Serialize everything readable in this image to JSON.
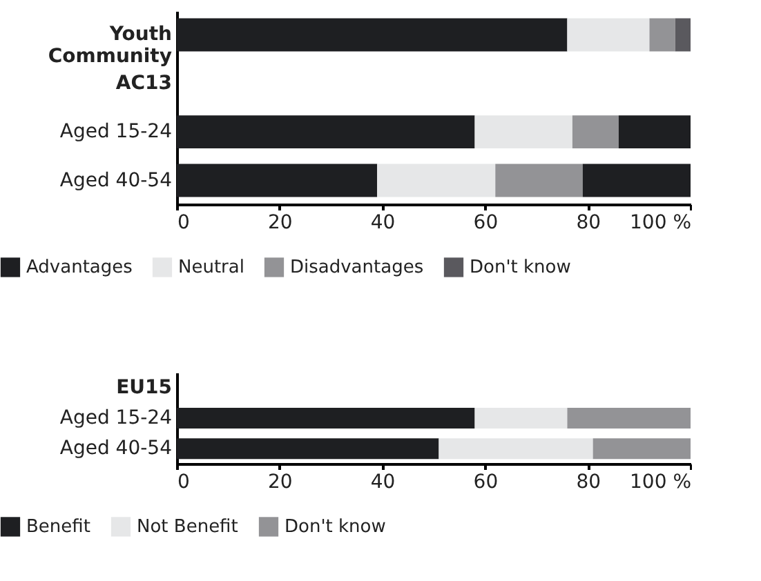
{
  "chart_data": [
    {
      "type": "bar",
      "orientation": "horizontal",
      "stacked": true,
      "categories": [
        "Youth Community",
        "AC13",
        "Aged 15-24",
        "Aged 40-54"
      ],
      "series": [
        {
          "name": "Advantages",
          "color": "#1e1f22",
          "values": [
            76,
            null,
            58,
            39
          ]
        },
        {
          "name": "Neutral",
          "color": "#e6e7e8",
          "values": [
            16,
            null,
            19,
            23
          ]
        },
        {
          "name": "Disadvantages",
          "color": "#939396",
          "values": [
            5,
            null,
            9,
            17
          ]
        },
        {
          "name": "Don't know",
          "color": "#5a595e",
          "colors": [
            "#5a595e",
            null,
            "#1e1f22",
            "#1e1f22"
          ],
          "values": [
            3,
            null,
            14,
            21
          ]
        }
      ],
      "xlim": [
        0,
        100
      ],
      "xticks": [
        0,
        20,
        40,
        60,
        80,
        {
          "value": 100,
          "label": "100 %"
        }
      ],
      "grid": false,
      "legend": "bottom"
    },
    {
      "type": "bar",
      "orientation": "horizontal",
      "stacked": true,
      "categories": [
        "EU15",
        "Aged 15-24",
        "Aged 40-54"
      ],
      "series": [
        {
          "name": "Benefit",
          "color": "#1e1f22",
          "values": [
            null,
            58,
            51
          ]
        },
        {
          "name": "Not Benefit",
          "color": "#e6e7e8",
          "values": [
            null,
            18,
            30
          ]
        },
        {
          "name": "Don't know",
          "color": "#939396",
          "values": [
            null,
            24,
            19
          ]
        }
      ],
      "xlim": [
        0,
        100
      ],
      "xticks": [
        0,
        20,
        40,
        60,
        80,
        {
          "value": 100,
          "label": "100 %"
        }
      ],
      "grid": false,
      "legend": "bottom"
    }
  ]
}
